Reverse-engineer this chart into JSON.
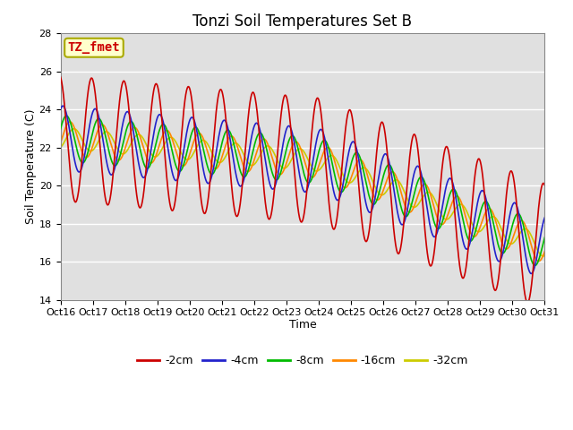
{
  "title": "Tonzi Soil Temperatures Set B",
  "xlabel": "Time",
  "ylabel": "Soil Temperature (C)",
  "ylim": [
    14,
    28
  ],
  "xlim": [
    0,
    15
  ],
  "xtick_labels": [
    "Oct 16",
    "Oct 17",
    "Oct 18",
    "Oct 19",
    "Oct 20",
    "Oct 21",
    "Oct 22",
    "Oct 23",
    "Oct 24",
    "Oct 25",
    "Oct 26",
    "Oct 27",
    "Oct 28",
    "Oct 29",
    "Oct 30",
    "Oct 31"
  ],
  "ytick_values": [
    14,
    16,
    18,
    20,
    22,
    24,
    26,
    28
  ],
  "series_labels": [
    "-2cm",
    "-4cm",
    "-8cm",
    "-16cm",
    "-32cm"
  ],
  "series_colors": [
    "#cc0000",
    "#2222cc",
    "#00bb00",
    "#ff8800",
    "#cccc00"
  ],
  "annotation_text": "TZ_fmet",
  "annotation_bgcolor": "#ffffcc",
  "annotation_edgecolor": "#aaaa00",
  "annotation_textcolor": "#cc0000",
  "title_fontsize": 12,
  "axis_label_fontsize": 9,
  "tick_fontsize": 8,
  "legend_fontsize": 9,
  "linewidth": 1.2
}
